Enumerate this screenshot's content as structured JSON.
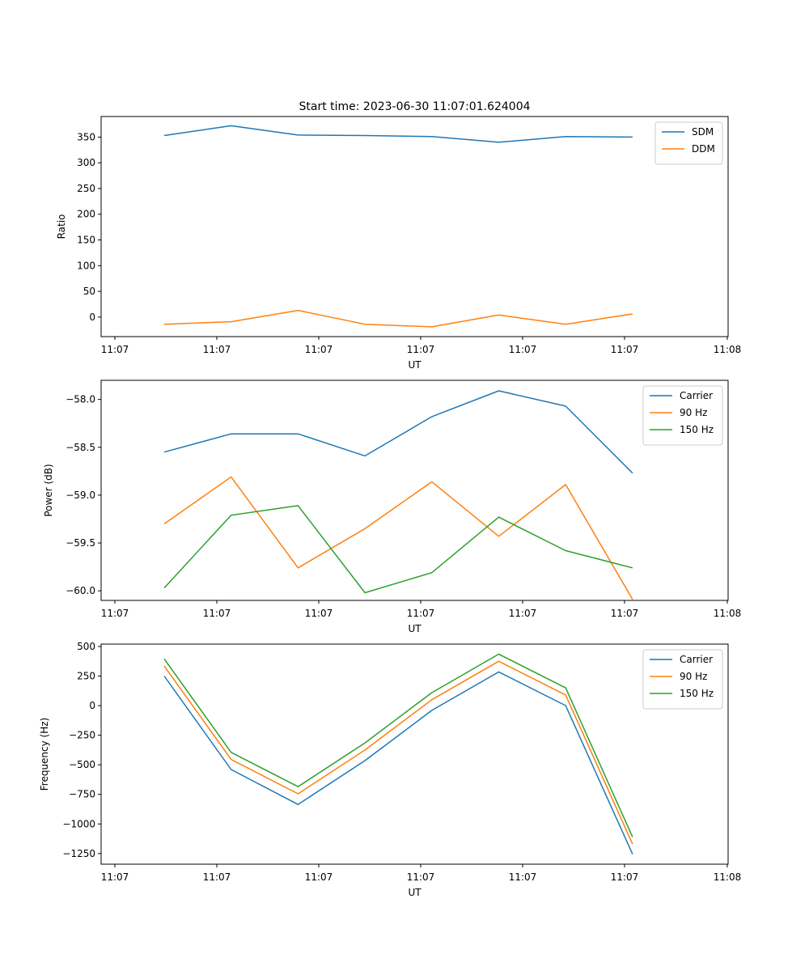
{
  "title": "Start time: 2023-06-30 11:07:01.624004",
  "chart_data": [
    {
      "type": "line",
      "xlabel": "UT",
      "ylabel": "Ratio",
      "x_tick_labels": [
        "11:07",
        "11:07",
        "11:07",
        "11:07",
        "11:07",
        "11:07",
        "11:07"
      ],
      "x_last_tick_label": "11:08",
      "ylim": [
        -38,
        390
      ],
      "yticks": [
        0,
        50,
        100,
        150,
        200,
        250,
        300,
        350
      ],
      "y_tick_labels": [
        "0",
        "50",
        "100",
        "150",
        "200",
        "250",
        "300",
        "350"
      ],
      "legend": "top-right",
      "series": [
        {
          "name": "SDM",
          "color": "#1f77b4",
          "values": [
            353,
            372,
            354,
            353,
            351,
            340,
            351,
            350
          ]
        },
        {
          "name": "DDM",
          "color": "#ff7f0e",
          "values": [
            -14,
            -9,
            13,
            -14,
            -19,
            4,
            -14,
            6
          ]
        }
      ]
    },
    {
      "type": "line",
      "xlabel": "UT",
      "ylabel": "Power (dB)",
      "x_tick_labels": [
        "11:07",
        "11:07",
        "11:07",
        "11:07",
        "11:07",
        "11:07",
        "11:07"
      ],
      "x_last_tick_label": "11:08",
      "ylim": [
        -60.1,
        -57.8
      ],
      "yticks": [
        -60.0,
        -59.5,
        -59.0,
        -58.5,
        -58.0
      ],
      "y_tick_labels": [
        "−60.0",
        "−59.5",
        "−59.0",
        "−58.5",
        "−58.0"
      ],
      "legend": "top-right",
      "series": [
        {
          "name": "Carrier",
          "color": "#1f77b4",
          "values": [
            -58.55,
            -58.36,
            -58.36,
            -58.59,
            -58.18,
            -57.91,
            -58.07,
            -58.77
          ]
        },
        {
          "name": "90 Hz",
          "color": "#ff7f0e",
          "values": [
            -59.3,
            -58.81,
            -59.76,
            -59.35,
            -58.86,
            -59.43,
            -58.89,
            -60.09
          ]
        },
        {
          "name": "150 Hz",
          "color": "#2ca02c",
          "values": [
            -59.97,
            -59.21,
            -59.11,
            -60.02,
            -59.81,
            -59.23,
            -59.58,
            -59.76
          ]
        }
      ]
    },
    {
      "type": "line",
      "xlabel": "UT",
      "ylabel": "Frequency (Hz)",
      "x_tick_labels": [
        "11:07",
        "11:07",
        "11:07",
        "11:07",
        "11:07",
        "11:07",
        "11:07"
      ],
      "x_last_tick_label": "11:08",
      "ylim": [
        -1340,
        520
      ],
      "yticks": [
        -1250,
        -1000,
        -750,
        -500,
        -250,
        0,
        250,
        500
      ],
      "y_tick_labels": [
        "−1250",
        "−1000",
        "−750",
        "−500",
        "−250",
        "0",
        "250",
        "500"
      ],
      "legend": "top-right",
      "series": [
        {
          "name": "Carrier",
          "color": "#1f77b4",
          "values": [
            250,
            -540,
            -835,
            -465,
            -40,
            285,
            0,
            -1255
          ]
        },
        {
          "name": "90 Hz",
          "color": "#ff7f0e",
          "values": [
            335,
            -455,
            -745,
            -375,
            50,
            375,
            90,
            -1170
          ]
        },
        {
          "name": "150 Hz",
          "color": "#2ca02c",
          "values": [
            395,
            -395,
            -685,
            -315,
            110,
            435,
            150,
            -1110
          ]
        }
      ]
    }
  ]
}
